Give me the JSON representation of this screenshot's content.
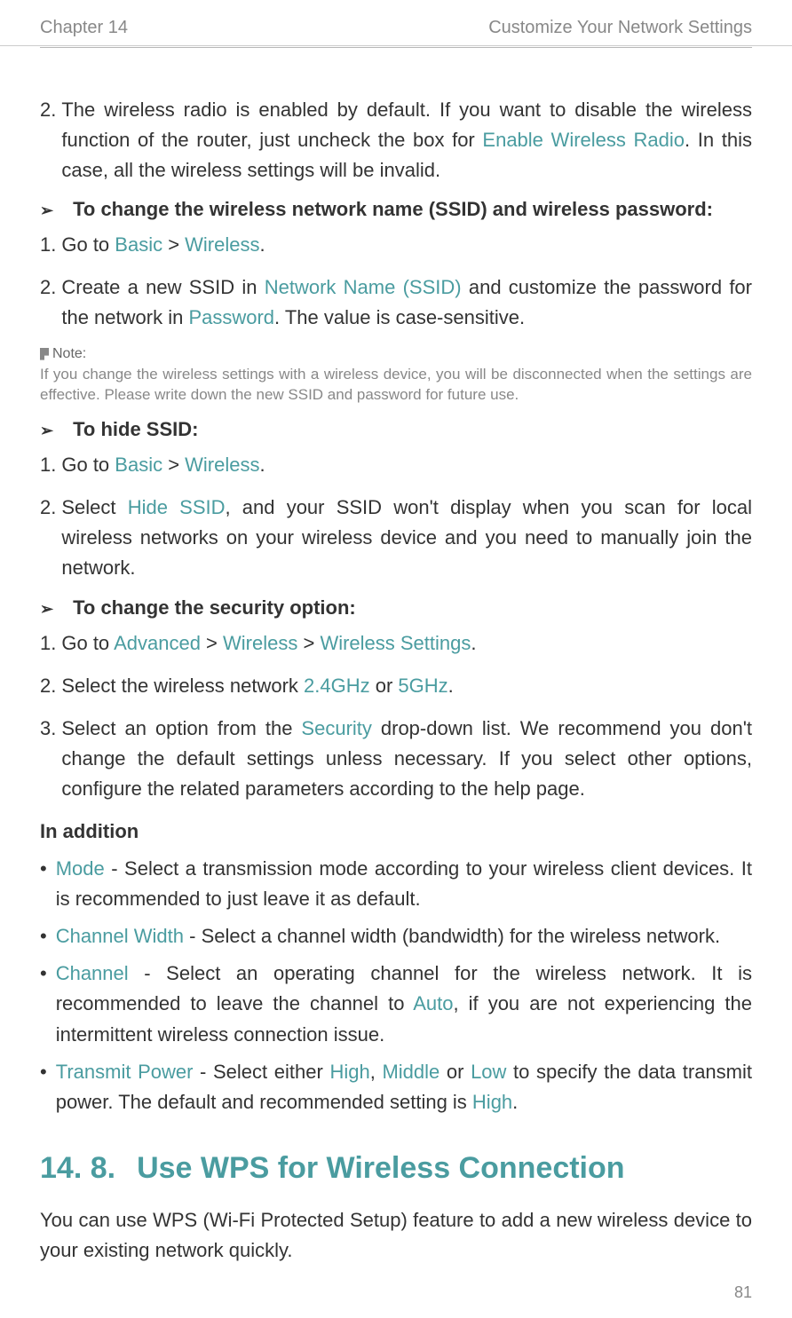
{
  "header": {
    "chapter": "Chapter 14",
    "title": "Customize Your Network Settings"
  },
  "colors": {
    "teal": "#4a9ca0",
    "body": "#333333",
    "muted": "#888888",
    "rule": "#cccccc",
    "background": "#ffffff"
  },
  "typography": {
    "body_fontsize": 22,
    "header_fontsize": 20,
    "note_fontsize": 17,
    "heading_fontsize": 34
  },
  "items": {
    "p1_num": "2.",
    "p1_a": "The wireless radio is enabled by default. If you want to disable the wireless function of the router, just uncheck the box for ",
    "p1_b": "Enable Wireless Radio",
    "p1_c": ". In this case, all the wireless settings will be invalid.",
    "h1_tri": "➢",
    "h1": "To change the wireless network name (SSID) and wireless password:",
    "p2_num": "1.",
    "p2_a": "Go to ",
    "p2_b": "Basic",
    "p2_c": " > ",
    "p2_d": "Wireless",
    "p2_e": ".",
    "p3_num": "2.",
    "p3_a": "Create a new SSID in ",
    "p3_b": "Network Name (SSID)",
    "p3_c": " and customize the password for the network in ",
    "p3_d": "Password",
    "p3_e": ".  The value is case-sensitive.",
    "note_label": "Note:",
    "note_text": "If you change the wireless settings with a wireless device, you will be disconnected when the settings are effective. Please write down the new SSID and password for future use.",
    "h2": "To hide SSID:",
    "p4_num": "1.",
    "p4_a": "Go to ",
    "p4_b": "Basic",
    "p4_c": " > ",
    "p4_d": "Wireless",
    "p4_e": ".",
    "p5_num": "2.",
    "p5_a": "Select ",
    "p5_b": "Hide SSID",
    "p5_c": ", and your SSID won't display when you scan for local wireless networks on your wireless device and you need to manually join the network.",
    "h3": "To change the security option:",
    "p6_num": "1.",
    "p6_a": "Go to ",
    "p6_b": "Advanced",
    "p6_c": " > ",
    "p6_d": "Wireless",
    "p6_e": " > ",
    "p6_f": "Wireless Settings",
    "p6_g": ".",
    "p7_num": "2.",
    "p7_a": "Select the wireless network ",
    "p7_b": "2.4GHz",
    "p7_c": " or ",
    "p7_d": "5GHz",
    "p7_e": ".",
    "p8_num": "3.",
    "p8_a": "Select an option from the ",
    "p8_b": "Security",
    "p8_c": " drop-down list. We recommend you don't change the default settings unless necessary. If you select other options, configure the related parameters according to the help page.",
    "inaddition": "In addition",
    "b1_dot": "•",
    "b1_a": "Mode",
    "b1_b": " - Select a transmission mode according to your wireless client devices. It is recommended to just leave it as default.",
    "b2_a": "Channel Width",
    "b2_b": " - Select a channel width (bandwidth) for the wireless network.",
    "b3_a": "Channel",
    "b3_b": " - Select an operating channel for the wireless network. It is recommended to leave the channel to ",
    "b3_c": "Auto",
    "b3_d": ", if you are not experiencing the intermittent wireless connection issue.",
    "b4_a": "Transmit Power",
    "b4_b": " - Select either ",
    "b4_c": "High",
    "b4_d": ", ",
    "b4_e": "Middle",
    "b4_f": " or ",
    "b4_g": "Low",
    "b4_h": " to specify the data transmit power. The default and recommended setting is ",
    "b4_i": "High",
    "b4_j": ".",
    "sec_num": "14. 8.",
    "sec_title": "Use WPS for Wireless Connection",
    "sec_para": "You can use WPS (Wi-Fi Protected Setup) feature to add a new wireless device to your existing network quickly."
  },
  "page_number": "81"
}
